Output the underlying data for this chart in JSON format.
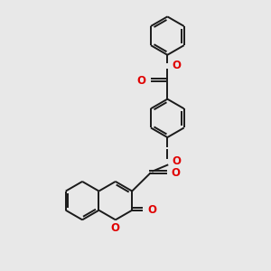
{
  "bg_color": "#e8e8e8",
  "bond_color": "#1a1a1a",
  "oxygen_color": "#e00000",
  "line_width": 1.4,
  "figsize": [
    3.0,
    3.0
  ],
  "dpi": 100,
  "xlim": [
    0,
    10
  ],
  "ylim": [
    0,
    10
  ]
}
